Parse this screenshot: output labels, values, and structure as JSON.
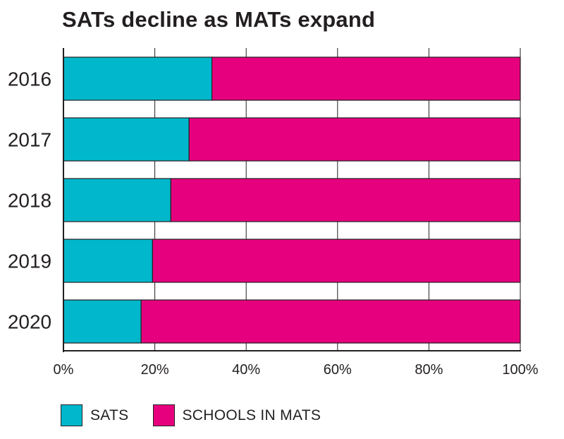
{
  "chart_data": {
    "type": "bar",
    "orientation": "horizontal",
    "stacked": true,
    "title": "SATs decline as MATs expand",
    "categories": [
      "2016",
      "2017",
      "2018",
      "2019",
      "2020"
    ],
    "series": [
      {
        "name": "SATS",
        "color": "#00b7cc",
        "values": [
          32.5,
          27.5,
          23.5,
          19.5,
          17
        ]
      },
      {
        "name": "SCHOOLS IN MATS",
        "color": "#e6007e",
        "values": [
          67.5,
          72.5,
          76.5,
          80.5,
          83
        ]
      }
    ],
    "xlim": [
      0,
      100
    ],
    "xticks": [
      "0%",
      "20%",
      "40%",
      "60%",
      "80%",
      "100%"
    ],
    "grid": true,
    "legend_position": "bottom-left"
  }
}
